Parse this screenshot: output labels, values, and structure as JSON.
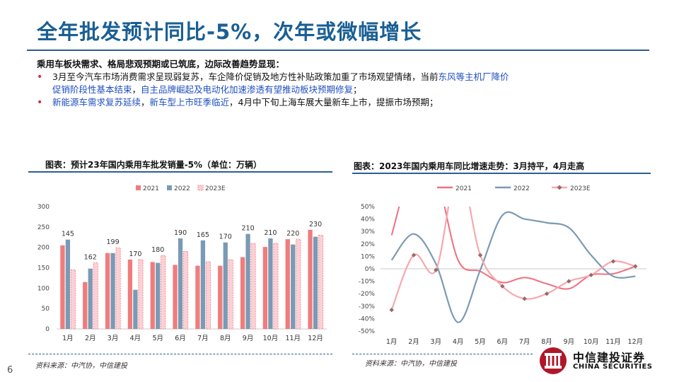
{
  "page": {
    "title": "全年批发预计同比-5%，次年或微幅增长",
    "page_number": "6",
    "source_left": "资料来源：中汽协，中信建投",
    "source_right": "资料来源：中汽协，中信建投",
    "logo_cn": "中信建投证券",
    "logo_en": "CHINA SECURITIES"
  },
  "bullets": {
    "heading": "乘用车板块需求、格局悲观预期或已筑底，边际改善趋势显现：",
    "b1_plain": "3月至今汽车市场消费需求呈现弱复苏，车企降价促销及地方性补贴政策加重了市场观望情绪，当前",
    "b1_blue": "东风等主机厂降价",
    "b1_cont_blue1": "促销阶段性基本结束",
    "b1_cont_sep": "，",
    "b1_cont_blue2": "自主品牌崛起及电动化加速渗透有望推动板块预期修复",
    "b1_cont_end": "；",
    "b2_blue1": "新能源车需求复苏延续",
    "b2_sep": "，",
    "b2_blue2": "新车型上市旺季临近",
    "b2_plain": "，4月中下旬上海车展大量新车上市，提振市场预期；"
  },
  "chart_data": [
    {
      "type": "bar",
      "title": "图表：预计23年国内乘用车批发销量-5%（单位：万辆）",
      "categories": [
        "1月",
        "2月",
        "3月",
        "4月",
        "5月",
        "6月",
        "7月",
        "8月",
        "9月",
        "10月",
        "11月",
        "12月"
      ],
      "series": [
        {
          "name": "2021",
          "color": "#f07c7c",
          "values": [
            205,
            115,
            186,
            170,
            164,
            157,
            155,
            155,
            176,
            201,
            220,
            243
          ]
        },
        {
          "name": "2022",
          "color": "#7a9ab5",
          "values": [
            219,
            148,
            186,
            96,
            162,
            222,
            217,
            212,
            233,
            222,
            207,
            226
          ]
        },
        {
          "name": "2023E",
          "color": "#fbd0d6",
          "values": [
            145,
            162,
            199,
            170,
            180,
            190,
            165,
            170,
            210,
            210,
            220,
            230
          ]
        }
      ],
      "data_labels": [
        "145",
        "162",
        "199",
        "170",
        "180",
        "190",
        "165",
        "170",
        "210",
        "210",
        "220",
        "230"
      ],
      "yticks": [
        "0",
        "50",
        "100",
        "150",
        "200",
        "250",
        "300"
      ],
      "ylim": [
        0,
        300
      ],
      "legend": "top"
    },
    {
      "type": "line",
      "title": "图表：2023年国内乘用车同比增速走势：3月持平，4月走高",
      "categories": [
        "1月",
        "2月",
        "3月",
        "4月",
        "5月",
        "6月",
        "7月",
        "8月",
        "9月",
        "10月",
        "11月",
        "12月"
      ],
      "series": [
        {
          "name": "2021",
          "color": "#f07080",
          "values": [
            27,
            85,
            75,
            7,
            -2,
            -11,
            -7,
            -12,
            -16,
            -5,
            -4,
            2
          ]
        },
        {
          "name": "2022",
          "color": "#7a9ab5",
          "values": [
            7,
            28,
            4,
            -43,
            -1,
            43,
            40,
            37,
            33,
            11,
            -6,
            -6
          ]
        },
        {
          "name": "2023E",
          "color": "#f6a8ae",
          "values": [
            -33,
            11,
            -1,
            80,
            11,
            -14,
            -24,
            -20,
            -10,
            -5,
            6,
            2
          ]
        }
      ],
      "yticks": [
        "50%",
        "40%",
        "30%",
        "20%",
        "10%",
        "0%",
        "-10%",
        "-20%",
        "-30%",
        "-40%",
        "-50%"
      ],
      "ylim": [
        -50,
        50
      ],
      "legend": "top"
    }
  ]
}
